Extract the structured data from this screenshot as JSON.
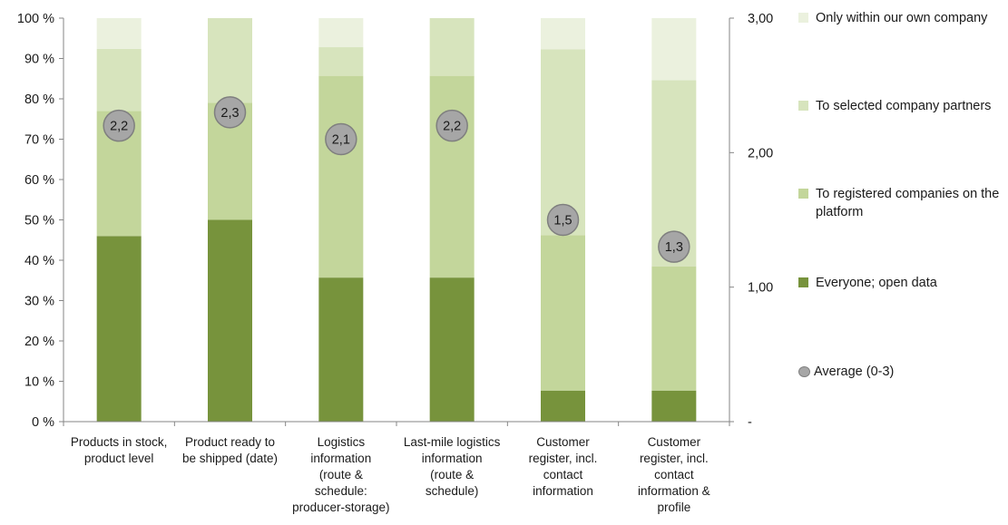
{
  "chart_data": {
    "type": "bar",
    "stacked": true,
    "categories": [
      "Products in stock, product level",
      "Product ready to be shipped (date)",
      "Logistics information (route & schedule: producer-storage)",
      "Last-mile logistics information (route & schedule)",
      "Customer register, incl. contact information",
      "Customer register, incl. contact information & profile"
    ],
    "category_lines": [
      [
        "Products in stock,",
        "product level"
      ],
      [
        "Product ready to",
        "be shipped (date)"
      ],
      [
        "Logistics",
        "information",
        "(route &",
        "schedule:",
        "producer-storage)"
      ],
      [
        "Last-mile logistics",
        "information",
        "(route &",
        "schedule)"
      ],
      [
        "Customer",
        "register, incl.",
        "contact",
        "information"
      ],
      [
        "Customer",
        "register, incl.",
        "contact",
        "information &",
        "profile"
      ]
    ],
    "series": [
      {
        "name": "Everyone; open data",
        "color": "#77933c",
        "values": [
          46,
          50,
          35.7,
          35.7,
          7.7,
          7.7
        ]
      },
      {
        "name": "To registered companies on the platform",
        "color": "#c3d69b",
        "values": [
          31,
          29,
          50,
          50,
          38.5,
          30.8
        ]
      },
      {
        "name": "To selected company partners",
        "color": "#d7e4bd",
        "values": [
          15.4,
          21,
          7.1,
          14.3,
          46.1,
          46.1
        ]
      },
      {
        "name": "Only within our own company",
        "color": "#ebf1de",
        "values": [
          7.6,
          0,
          7.2,
          0,
          7.7,
          15.4
        ]
      }
    ],
    "average": {
      "name": "Average (0-3)",
      "values": [
        2.2,
        2.3,
        2.1,
        2.2,
        1.5,
        1.3
      ],
      "labels": [
        "2,2",
        "2,3",
        "2,1",
        "2,2",
        "1,5",
        "1,3"
      ],
      "fill": "#a6a6a6",
      "stroke": "#7f7f7f"
    },
    "y_left": {
      "ylim": [
        0,
        100
      ],
      "ticks": [
        0,
        10,
        20,
        30,
        40,
        50,
        60,
        70,
        80,
        90,
        100
      ],
      "tick_labels": [
        "0 %",
        "10 %",
        "20 %",
        "30 %",
        "40 %",
        "50 %",
        "60 %",
        "70 %",
        "80 %",
        "90 %",
        "100 %"
      ]
    },
    "y_right": {
      "ylim": [
        0,
        3
      ],
      "ticks": [
        0,
        1,
        2,
        3
      ],
      "tick_labels": [
        "-",
        "1,00",
        "2,00",
        "3,00"
      ]
    },
    "legend": {
      "placement": "right",
      "items": [
        {
          "label": "Only within our own company",
          "color": "#ebf1de",
          "shape": "square"
        },
        {
          "label": "To selected company partners",
          "color": "#d7e4bd",
          "shape": "square"
        },
        {
          "label": "To registered companies on the platform",
          "color": "#c3d69b",
          "shape": "square"
        },
        {
          "label": "Everyone; open data",
          "color": "#77933c",
          "shape": "square"
        },
        {
          "label": "Average (0-3)",
          "color": "#a6a6a6",
          "shape": "circle"
        }
      ]
    },
    "grid": false
  }
}
